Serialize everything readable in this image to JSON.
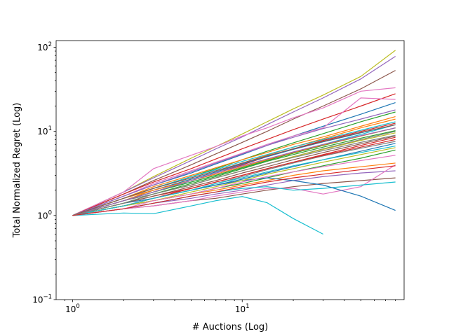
{
  "chart_data": {
    "type": "line",
    "title": "",
    "xlabel": "# Auctions (Log)",
    "ylabel": "Total Normalized Regret (Log)",
    "xscale": "log",
    "yscale": "log",
    "xlim": [
      0.8,
      90
    ],
    "ylim": [
      0.1,
      120
    ],
    "grid": false,
    "legend": "none",
    "x_ticks": [
      {
        "base": "10",
        "exp": "0",
        "value": 1
      },
      {
        "base": "10",
        "exp": "1",
        "value": 10
      }
    ],
    "y_ticks": [
      {
        "base": "10",
        "exp": "−1",
        "value": 0.1
      },
      {
        "base": "10",
        "exp": "0",
        "value": 1
      },
      {
        "base": "10",
        "exp": "1",
        "value": 10
      },
      {
        "base": "10",
        "exp": "2",
        "value": 100
      }
    ],
    "x": [
      1,
      2,
      3,
      5,
      7,
      10,
      14,
      20,
      30,
      50,
      80
    ],
    "palette": [
      "#1f77b4",
      "#ff7f0e",
      "#2ca02c",
      "#d62728",
      "#9467bd",
      "#8c564b",
      "#e377c2",
      "#7f7f7f",
      "#bcbd22",
      "#17becf"
    ],
    "series": [
      {
        "color": "#bcbd22",
        "values": [
          1,
          1.9,
          2.9,
          4.8,
          6.6,
          9.3,
          13,
          18.5,
          27,
          45,
          92
        ]
      },
      {
        "color": "#9467bd",
        "values": [
          1,
          1.9,
          2.8,
          4.5,
          6.2,
          8.6,
          12,
          17,
          25,
          42,
          78
        ]
      },
      {
        "color": "#8c564b",
        "values": [
          1,
          1.8,
          2.6,
          4.0,
          5.4,
          7.4,
          10,
          14,
          20,
          32,
          53
        ]
      },
      {
        "color": "#e377c2",
        "values": [
          1,
          1.9,
          3.6,
          5.2,
          6.6,
          8.8,
          11,
          14.5,
          19,
          30,
          33
        ]
      },
      {
        "color": "#d62728",
        "values": [
          1,
          1.8,
          2.5,
          3.6,
          4.7,
          6.2,
          8.0,
          10.5,
          14,
          20,
          28
        ]
      },
      {
        "color": "#1f77b4",
        "values": [
          1,
          1.7,
          2.3,
          3.2,
          4.1,
          5.3,
          6.8,
          8.8,
          11.5,
          16,
          22
        ]
      },
      {
        "color": "#2ca02c",
        "values": [
          1,
          1.6,
          2.1,
          2.9,
          3.6,
          4.6,
          5.8,
          7.3,
          9.4,
          13,
          17
        ]
      },
      {
        "color": "#ff7f0e",
        "values": [
          1,
          1.6,
          2.0,
          2.7,
          3.3,
          4.2,
          5.2,
          6.5,
          8.2,
          11,
          14
        ]
      },
      {
        "color": "#17becf",
        "values": [
          1,
          1.5,
          1.9,
          2.5,
          3.0,
          3.7,
          4.5,
          5.6,
          7.0,
          9.2,
          12
        ]
      },
      {
        "color": "#7f7f7f",
        "values": [
          1,
          1.5,
          1.8,
          2.3,
          2.8,
          3.4,
          4.1,
          5.0,
          6.2,
          8.0,
          10
        ]
      },
      {
        "color": "#d62728",
        "values": [
          1,
          1.4,
          1.7,
          2.1,
          2.5,
          3.0,
          3.6,
          4.3,
          5.3,
          6.8,
          8.5
        ]
      },
      {
        "color": "#1f77b4",
        "values": [
          1,
          1.4,
          1.6,
          2.0,
          2.3,
          2.7,
          3.2,
          3.8,
          4.6,
          5.8,
          7.2
        ]
      },
      {
        "color": "#2ca02c",
        "values": [
          1,
          1.3,
          1.5,
          1.8,
          2.1,
          2.4,
          2.8,
          3.3,
          3.9,
          4.8,
          6.0
        ]
      },
      {
        "color": "#ff7f0e",
        "values": [
          1,
          1.3,
          1.5,
          1.8,
          2.0,
          2.3,
          2.6,
          3.0,
          3.4,
          3.8,
          4.2
        ]
      },
      {
        "color": "#9467bd",
        "values": [
          1,
          1.2,
          1.4,
          1.6,
          1.8,
          2.0,
          2.3,
          2.6,
          2.9,
          3.2,
          3.4
        ]
      },
      {
        "color": "#8c564b",
        "values": [
          1,
          1.2,
          1.3,
          1.5,
          1.6,
          1.8,
          2.0,
          2.2,
          2.4,
          2.6,
          2.8
        ]
      },
      {
        "color": "#e377c2",
        "values": [
          1,
          1.2,
          1.3,
          1.5,
          1.7,
          1.9,
          2.1,
          2.1,
          1.8,
          2.2,
          4.0
        ]
      },
      {
        "color": "#17becf",
        "values": [
          1,
          1.2,
          1.4,
          1.7,
          1.9,
          2.1,
          2.2,
          2.0,
          2.1,
          2.3,
          2.5
        ]
      },
      {
        "color": "#1f77b4",
        "values": [
          1,
          1.3,
          1.6,
          2.0,
          2.3,
          2.6,
          2.8,
          2.6,
          2.3,
          1.7,
          1.15
        ]
      },
      {
        "color": "#17becf",
        "values": [
          1,
          1.07,
          1.05,
          1.3,
          1.5,
          1.68,
          1.42,
          0.92,
          0.6,
          null,
          null
        ]
      },
      {
        "color": "#d62728",
        "values": [
          1,
          1.5,
          1.9,
          2.6,
          3.2,
          4.0,
          5.0,
          6.2,
          7.8,
          10,
          12.5
        ]
      },
      {
        "color": "#2ca02c",
        "values": [
          1,
          1.5,
          1.9,
          2.5,
          3.0,
          3.7,
          4.5,
          5.5,
          6.8,
          8.8,
          11
        ]
      },
      {
        "color": "#bcbd22",
        "values": [
          1,
          1.4,
          1.8,
          2.3,
          2.8,
          3.4,
          4.1,
          5.0,
          6.1,
          7.8,
          9.6
        ]
      },
      {
        "color": "#ff7f0e",
        "values": [
          1,
          1.6,
          2.2,
          3.0,
          3.7,
          4.6,
          5.6,
          7.0,
          8.6,
          11.5,
          15
        ]
      },
      {
        "color": "#e377c2",
        "values": [
          1,
          1.7,
          2.4,
          3.4,
          4.3,
          5.5,
          7.0,
          8.8,
          11,
          25,
          24
        ]
      },
      {
        "color": "#9467bd",
        "values": [
          1,
          1.7,
          2.3,
          3.3,
          4.2,
          5.4,
          6.8,
          8.5,
          10.8,
          14,
          18
        ]
      },
      {
        "color": "#7f7f7f",
        "values": [
          1,
          1.3,
          1.6,
          2.0,
          2.4,
          2.9,
          3.5,
          4.2,
          5.1,
          6.3,
          7.6
        ]
      },
      {
        "color": "#8c564b",
        "values": [
          1,
          1.4,
          1.7,
          2.2,
          2.6,
          3.2,
          3.8,
          4.6,
          5.6,
          7.1,
          8.8
        ]
      },
      {
        "color": "#17becf",
        "values": [
          1,
          1.6,
          2.1,
          2.9,
          3.5,
          4.4,
          5.3,
          6.5,
          8.0,
          10.3,
          13
        ]
      },
      {
        "color": "#1f77b4",
        "values": [
          1,
          1.5,
          2.0,
          2.7,
          3.3,
          4.1,
          5.0,
          6.1,
          7.5,
          9.6,
          12
        ]
      },
      {
        "color": "#d62728",
        "values": [
          1,
          1.3,
          1.6,
          2.1,
          2.5,
          3.0,
          3.6,
          4.3,
          5.2,
          6.5,
          8.0
        ]
      },
      {
        "color": "#2ca02c",
        "values": [
          1,
          1.4,
          1.8,
          2.4,
          2.9,
          3.6,
          4.4,
          5.3,
          6.5,
          8.3,
          10.2
        ]
      },
      {
        "color": "#ff7f0e",
        "values": [
          1,
          1.5,
          2.0,
          2.6,
          3.1,
          3.8,
          4.6,
          5.6,
          6.9,
          8.8,
          11
        ]
      },
      {
        "color": "#bcbd22",
        "values": [
          1,
          1.3,
          1.5,
          1.9,
          2.2,
          2.6,
          3.1,
          3.6,
          4.3,
          5.3,
          6.4
        ]
      },
      {
        "color": "#e377c2",
        "values": [
          1,
          1.2,
          1.5,
          1.8,
          2.1,
          2.5,
          2.9,
          3.3,
          3.8,
          4.5,
          5.2
        ]
      },
      {
        "color": "#9467bd",
        "values": [
          1,
          1.5,
          1.9,
          2.6,
          3.2,
          3.9,
          4.7,
          5.7,
          7.0,
          8.9,
          11
        ]
      },
      {
        "color": "#8c564b",
        "values": [
          1,
          1.6,
          2.1,
          2.8,
          3.4,
          4.2,
          5.1,
          6.2,
          7.6,
          9.7,
          12
        ]
      },
      {
        "color": "#17becf",
        "values": [
          1,
          1.3,
          1.6,
          2.0,
          2.4,
          2.8,
          3.3,
          3.9,
          4.6,
          5.6,
          6.7
        ]
      },
      {
        "color": "#7f7f7f",
        "values": [
          1,
          1.4,
          1.8,
          2.3,
          2.8,
          3.4,
          4.1,
          4.9,
          5.9,
          7.4,
          9.0
        ]
      },
      {
        "color": "#d62728",
        "values": [
          1,
          1.2,
          1.4,
          1.7,
          1.9,
          2.2,
          2.5,
          2.8,
          3.1,
          3.5,
          3.9
        ]
      }
    ]
  }
}
